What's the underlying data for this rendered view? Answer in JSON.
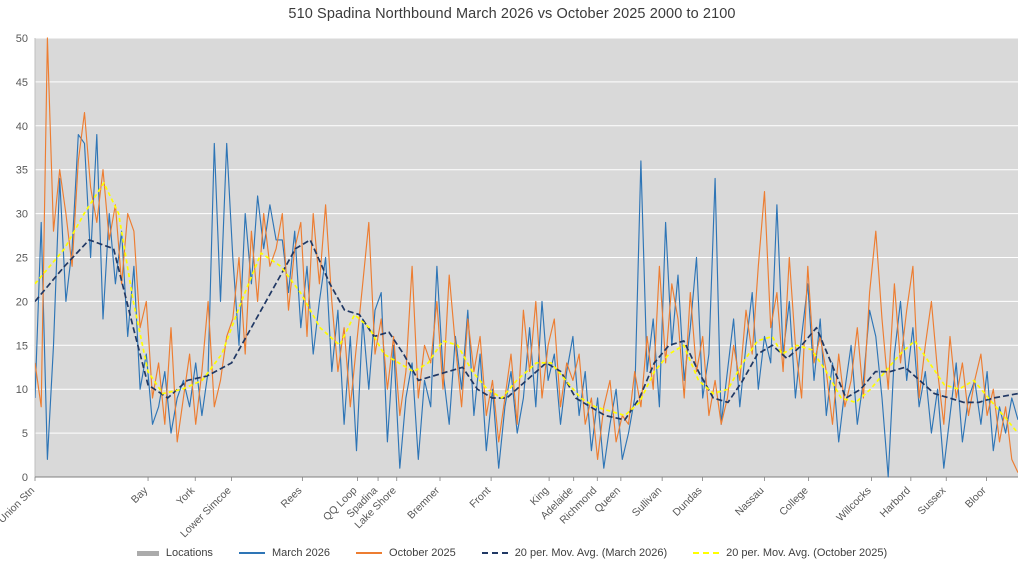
{
  "title": "510 Spadina Northbound March 2026 vs October 2025 2000 to 2100",
  "chart_data": {
    "type": "line",
    "title": "510 Spadina Northbound March 2026 vs October 2025 2000 to 2100",
    "xlabel": "",
    "ylabel": "",
    "ylim": [
      0,
      50
    ],
    "ytick_step": 5,
    "grid": "horizontal-white-on-gray",
    "legend_position": "bottom",
    "colors": {
      "march": "#2E75B6",
      "october": "#ED7D31",
      "ma_march": "#203864",
      "ma_october": "#FFFF00",
      "plot_bg": "#D9D9D9",
      "grid": "#FFFFFF",
      "axis": "#808080",
      "tick_text": "#595959"
    },
    "x_locations": [
      {
        "label": "Union Stn",
        "f": 0.0
      },
      {
        "label": "Bay",
        "f": 0.115
      },
      {
        "label": "York",
        "f": 0.163
      },
      {
        "label": "Lower Simcoe",
        "f": 0.2
      },
      {
        "label": "Rees",
        "f": 0.272
      },
      {
        "label": "QQ Loop",
        "f": 0.328
      },
      {
        "label": "Spadina",
        "f": 0.349
      },
      {
        "label": "Lake Shore",
        "f": 0.368
      },
      {
        "label": "Bremner",
        "f": 0.412
      },
      {
        "label": "Front",
        "f": 0.464
      },
      {
        "label": "King",
        "f": 0.523
      },
      {
        "label": "Adelaide",
        "f": 0.548
      },
      {
        "label": "Richmond",
        "f": 0.572
      },
      {
        "label": "Queen",
        "f": 0.596
      },
      {
        "label": "Sullivan",
        "f": 0.638
      },
      {
        "label": "Dundas",
        "f": 0.679
      },
      {
        "label": "Nassau",
        "f": 0.742
      },
      {
        "label": "College",
        "f": 0.787
      },
      {
        "label": "Willcocks",
        "f": 0.851
      },
      {
        "label": "Harbord",
        "f": 0.891
      },
      {
        "label": "Sussex",
        "f": 0.927
      },
      {
        "label": "Bloor",
        "f": 0.968
      }
    ],
    "series": [
      {
        "name": "March 2026",
        "style": "solid",
        "color": "#2E75B6",
        "values": [
          9,
          29,
          2,
          15,
          34,
          20,
          26,
          39,
          38,
          25,
          39,
          18,
          30,
          22,
          28,
          16,
          24,
          10,
          14,
          6,
          8,
          12,
          5,
          9,
          11,
          8,
          13,
          7,
          12,
          38,
          20,
          38,
          25,
          15,
          30,
          22,
          32,
          26,
          31,
          27,
          27,
          21,
          28,
          17,
          24,
          14,
          20,
          25,
          12,
          19,
          6,
          16,
          3,
          18,
          10,
          19,
          21,
          4,
          15,
          1,
          9,
          13,
          2,
          11,
          8,
          24,
          12,
          6,
          16,
          10,
          19,
          7,
          14,
          3,
          10,
          1,
          8,
          12,
          5,
          9,
          17,
          8,
          20,
          11,
          14,
          6,
          12,
          16,
          7,
          12,
          3,
          9,
          1,
          6,
          10,
          2,
          5,
          9,
          36,
          12,
          18,
          8,
          29,
          15,
          23,
          11,
          17,
          25,
          9,
          14,
          34,
          6,
          12,
          18,
          8,
          15,
          21,
          10,
          16,
          13,
          31,
          14,
          20,
          9,
          16,
          22,
          11,
          18,
          7,
          13,
          4,
          10,
          15,
          6,
          11,
          19,
          16,
          9,
          0,
          14,
          20,
          11,
          17,
          8,
          12,
          5,
          10,
          1,
          7,
          13,
          4,
          9,
          11,
          6,
          12,
          3,
          8,
          5,
          9,
          6.5
        ]
      },
      {
        "name": "October 2025",
        "style": "solid",
        "color": "#ED7D31",
        "values": [
          13,
          8,
          50,
          28,
          35,
          30,
          24,
          36,
          41.5,
          33,
          29,
          35,
          27,
          31,
          22,
          30,
          28,
          17,
          20,
          9,
          13,
          6,
          17,
          4,
          9,
          14,
          6,
          12,
          20,
          8,
          11,
          16,
          18,
          25,
          14,
          28,
          20,
          30,
          24,
          26,
          30,
          19,
          26,
          29,
          16,
          30,
          22,
          31,
          20,
          12,
          17,
          8,
          15,
          22,
          29,
          14,
          18,
          10,
          16,
          7,
          12,
          24,
          9,
          15,
          13,
          20,
          10,
          23,
          15,
          8,
          18,
          12,
          16,
          7,
          11,
          4,
          9,
          14,
          6,
          19,
          12,
          20,
          9,
          15,
          18,
          8,
          13,
          11,
          14,
          6,
          9,
          2,
          8,
          11,
          4,
          7,
          6,
          12,
          8,
          16,
          10,
          24,
          13,
          22,
          18,
          9,
          21,
          12,
          16,
          7,
          11,
          6,
          9,
          15,
          11,
          19,
          14,
          24,
          32.5,
          17,
          21,
          12,
          25,
          15,
          9,
          24,
          13,
          16,
          12,
          6,
          14,
          8,
          11,
          17,
          9,
          21,
          28,
          18,
          10,
          22,
          13,
          19,
          24,
          9,
          15,
          20,
          12,
          6,
          16,
          9,
          13,
          7,
          11,
          14,
          7,
          10,
          4,
          8,
          2,
          0.5
        ]
      },
      {
        "name": "20 per. Mov. Avg. (March 2026)",
        "style": "dashed",
        "color": "#203864",
        "points": [
          [
            0,
            20
          ],
          [
            0.03,
            24
          ],
          [
            0.055,
            27
          ],
          [
            0.08,
            26
          ],
          [
            0.1,
            17
          ],
          [
            0.115,
            10.5
          ],
          [
            0.135,
            9
          ],
          [
            0.155,
            11
          ],
          [
            0.175,
            11.5
          ],
          [
            0.2,
            13
          ],
          [
            0.22,
            17
          ],
          [
            0.245,
            22
          ],
          [
            0.265,
            26
          ],
          [
            0.28,
            27
          ],
          [
            0.3,
            22
          ],
          [
            0.315,
            19
          ],
          [
            0.33,
            18.5
          ],
          [
            0.345,
            16
          ],
          [
            0.36,
            16.5
          ],
          [
            0.375,
            14
          ],
          [
            0.39,
            11
          ],
          [
            0.405,
            11.5
          ],
          [
            0.42,
            12
          ],
          [
            0.435,
            12.5
          ],
          [
            0.45,
            10
          ],
          [
            0.465,
            9
          ],
          [
            0.48,
            9
          ],
          [
            0.5,
            11
          ],
          [
            0.52,
            13
          ],
          [
            0.535,
            12
          ],
          [
            0.55,
            9
          ],
          [
            0.565,
            8
          ],
          [
            0.58,
            7
          ],
          [
            0.6,
            6.5
          ],
          [
            0.615,
            9
          ],
          [
            0.63,
            13
          ],
          [
            0.645,
            15
          ],
          [
            0.66,
            15.5
          ],
          [
            0.675,
            12
          ],
          [
            0.69,
            9
          ],
          [
            0.705,
            8.5
          ],
          [
            0.72,
            11
          ],
          [
            0.735,
            14
          ],
          [
            0.75,
            15
          ],
          [
            0.765,
            13.5
          ],
          [
            0.78,
            15
          ],
          [
            0.795,
            17
          ],
          [
            0.81,
            13
          ],
          [
            0.825,
            9
          ],
          [
            0.84,
            10
          ],
          [
            0.855,
            12
          ],
          [
            0.87,
            12
          ],
          [
            0.885,
            12.5
          ],
          [
            0.9,
            11
          ],
          [
            0.915,
            9.5
          ],
          [
            0.93,
            9
          ],
          [
            0.945,
            8.5
          ],
          [
            0.96,
            8.5
          ],
          [
            0.975,
            9
          ],
          [
            1,
            9.5
          ]
        ]
      },
      {
        "name": "20 per. Mov. Avg. (October 2025)",
        "style": "dashed",
        "color": "#FFFF00",
        "points": [
          [
            0,
            22
          ],
          [
            0.03,
            26
          ],
          [
            0.05,
            30
          ],
          [
            0.07,
            33.5
          ],
          [
            0.085,
            30
          ],
          [
            0.1,
            20
          ],
          [
            0.115,
            12
          ],
          [
            0.13,
            9.5
          ],
          [
            0.15,
            10
          ],
          [
            0.17,
            11
          ],
          [
            0.19,
            14
          ],
          [
            0.21,
            20
          ],
          [
            0.23,
            25.5
          ],
          [
            0.25,
            24
          ],
          [
            0.27,
            21
          ],
          [
            0.29,
            17
          ],
          [
            0.31,
            15
          ],
          [
            0.325,
            18.5
          ],
          [
            0.34,
            17
          ],
          [
            0.355,
            14
          ],
          [
            0.37,
            13
          ],
          [
            0.385,
            12
          ],
          [
            0.4,
            13
          ],
          [
            0.415,
            15.5
          ],
          [
            0.43,
            15
          ],
          [
            0.445,
            12
          ],
          [
            0.46,
            10
          ],
          [
            0.475,
            9
          ],
          [
            0.49,
            11
          ],
          [
            0.51,
            13
          ],
          [
            0.525,
            13
          ],
          [
            0.54,
            11
          ],
          [
            0.555,
            9
          ],
          [
            0.57,
            8
          ],
          [
            0.585,
            7.5
          ],
          [
            0.6,
            7
          ],
          [
            0.615,
            8.5
          ],
          [
            0.63,
            12
          ],
          [
            0.645,
            14
          ],
          [
            0.66,
            15
          ],
          [
            0.675,
            11
          ],
          [
            0.69,
            9.5
          ],
          [
            0.705,
            10
          ],
          [
            0.72,
            13
          ],
          [
            0.735,
            15.5
          ],
          [
            0.75,
            16
          ],
          [
            0.76,
            14
          ],
          [
            0.775,
            15
          ],
          [
            0.79,
            14.5
          ],
          [
            0.805,
            12
          ],
          [
            0.82,
            9
          ],
          [
            0.835,
            8.5
          ],
          [
            0.85,
            10
          ],
          [
            0.865,
            12
          ],
          [
            0.88,
            14
          ],
          [
            0.895,
            15.5
          ],
          [
            0.91,
            13
          ],
          [
            0.925,
            10.5
          ],
          [
            0.94,
            10
          ],
          [
            0.955,
            11
          ],
          [
            0.97,
            9
          ],
          [
            0.985,
            7
          ],
          [
            1,
            5
          ]
        ]
      }
    ],
    "legend": [
      {
        "label": "Locations",
        "swatch": "bar",
        "color": "#ABABAB"
      },
      {
        "label": "March 2026",
        "swatch": "line-solid",
        "color": "#2E75B6"
      },
      {
        "label": "October 2025",
        "swatch": "line-solid",
        "color": "#ED7D31"
      },
      {
        "label": "20 per. Mov. Avg. (March 2026)",
        "swatch": "line-dashed",
        "color": "#203864"
      },
      {
        "label": "20 per. Mov. Avg. (October 2025)",
        "swatch": "line-dashed",
        "color": "#FFFF00"
      }
    ]
  }
}
